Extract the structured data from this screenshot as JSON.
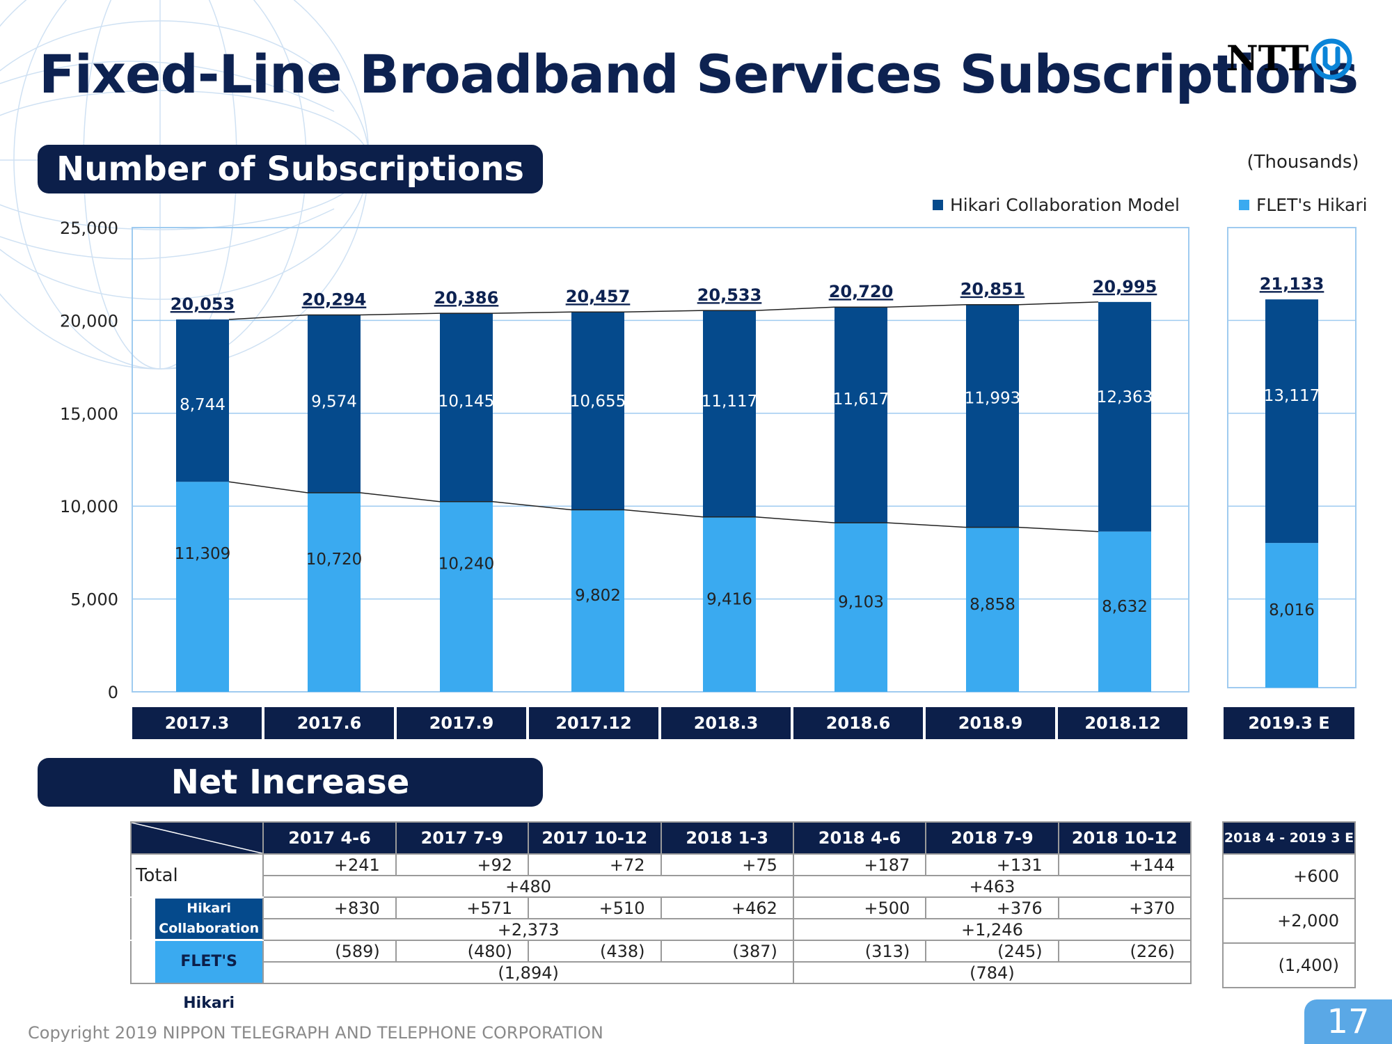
{
  "title": "Fixed-Line Broadband Services Subscriptions",
  "logo": {
    "text": "NTT",
    "icon": "ntt-logo-icon"
  },
  "section1": {
    "title": "Number of Subscriptions"
  },
  "section2": {
    "title": "Net Increase"
  },
  "unit_label": "(Thousands)",
  "colors": {
    "navy": "#0c1f4a",
    "hikari": "#054a8c",
    "flets": "#3aaaf0",
    "grid": "#9fcbf0"
  },
  "chart_data": {
    "type": "bar",
    "stacked": true,
    "categories": [
      "2017.3",
      "2017.6",
      "2017.9",
      "2017.12",
      "2018.3",
      "2018.6",
      "2018.9",
      "2018.12",
      "2019.3 E"
    ],
    "series": [
      {
        "name": "FLET's Hikari",
        "values": [
          11309,
          10720,
          10240,
          9802,
          9416,
          9103,
          8858,
          8632,
          8016
        ],
        "labels": [
          "11,309",
          "10,720",
          "10,240",
          "9,802",
          "9,416",
          "9,103",
          "8,858",
          "8,632",
          "8,016"
        ]
      },
      {
        "name": "Hikari Collaboration Model",
        "values": [
          8744,
          9574,
          10145,
          10655,
          11117,
          11617,
          11993,
          12363,
          13117
        ],
        "labels": [
          "8,744",
          "9,574",
          "10,145",
          "10,655",
          "11,117",
          "11,617",
          "11,993",
          "12,363",
          "13,117"
        ]
      }
    ],
    "totals": [
      20053,
      20294,
      20386,
      20457,
      20533,
      20720,
      20851,
      20995,
      21133
    ],
    "total_labels": [
      "20,053",
      "20,294",
      "20,386",
      "20,457",
      "20,533",
      "20,720",
      "20,851",
      "20,995",
      "21,133"
    ],
    "yticks": [
      "25,000",
      "20,000",
      "15,000",
      "10,000",
      "5,000",
      "0"
    ],
    "ylim": [
      0,
      25000
    ],
    "grid": true,
    "legend_position": "top-right"
  },
  "net_increase": {
    "periods": [
      "2017 4-6",
      "2017 7-9",
      "2017 10-12",
      "2018 1-3",
      "2018 4-6",
      "2018 7-9",
      "2018 10-12"
    ],
    "forecast_header": "2018 4 - 2019 3 E",
    "rows": {
      "total": {
        "label": "Total",
        "quarters": [
          "+241",
          "+92",
          "+72",
          "+75",
          "+187",
          "+131",
          "+144"
        ],
        "subtotals": [
          "+480",
          "+463"
        ],
        "forecast": "+600"
      },
      "hikari": {
        "label_line1": "Hikari",
        "label_line2": "Collaboration",
        "quarters": [
          "+830",
          "+571",
          "+510",
          "+462",
          "+500",
          "+376",
          "+370"
        ],
        "subtotals": [
          "+2,373",
          "+1,246"
        ],
        "forecast": "+2,000"
      },
      "flets": {
        "label": "FLET'S Hikari",
        "quarters": [
          "(589)",
          "(480)",
          "(438)",
          "(387)",
          "(313)",
          "(245)",
          "(226)"
        ],
        "subtotals": [
          "(1,894)",
          "(784)"
        ],
        "forecast": "(1,400)"
      }
    }
  },
  "footer": {
    "copyright": "Copyright 2019 NIPPON TELEGRAPH AND TELEPHONE CORPORATION",
    "page_number": "17"
  }
}
